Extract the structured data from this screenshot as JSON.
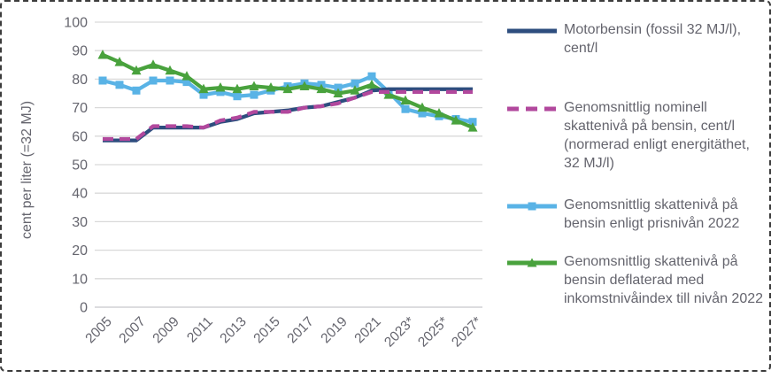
{
  "chart_data": {
    "type": "line",
    "title": "",
    "ylabel": "cent per liter (=32 MJ)",
    "ylim": [
      0,
      100
    ],
    "ytick_step": 10,
    "grid": "horizontal gridlines only",
    "legend_position": "right",
    "x": [
      2005,
      2006,
      2007,
      2008,
      2009,
      2010,
      2011,
      2012,
      2013,
      2014,
      2015,
      2016,
      2017,
      2018,
      2019,
      2020,
      2021,
      2022,
      2023,
      2024,
      2025,
      2026,
      2027
    ],
    "xtick_labels": [
      "2005",
      "2007",
      "2009",
      "2011",
      "2013",
      "2015",
      "2017",
      "2019",
      "2021",
      "2023*",
      "2025*",
      "2027*"
    ],
    "series": [
      {
        "name": "Motorbensin (fossil 32 MJ/l), cent/l",
        "color": "#2d4d7e",
        "line_style": "solid",
        "marker": "none",
        "values": [
          58.5,
          58.5,
          58.5,
          63,
          63,
          63,
          63,
          65,
          66,
          68,
          68.5,
          69,
          70,
          70.5,
          72,
          73.5,
          76,
          76.5,
          76.5,
          76.5,
          76.5,
          76.5,
          76.5
        ]
      },
      {
        "name": "Genomsnittlig nominell skattenivå på bensin, cent/l (normerad enligt energitäthet, 32 MJ/l)",
        "color": "#b2489d",
        "line_style": "dashed",
        "marker": "none",
        "values": [
          59,
          59,
          59,
          63.5,
          63.5,
          63.5,
          63,
          65.5,
          66.5,
          68.5,
          68.5,
          68.5,
          70,
          70.5,
          71.5,
          73.5,
          75.5,
          75.5,
          75.5,
          75.5,
          75.5,
          75.5,
          75.5
        ]
      },
      {
        "name": "Genomsnittlig skattenivå på bensin enligt prisnivån 2022",
        "color": "#59b3e6",
        "line_style": "solid",
        "marker": "square",
        "values": [
          79.5,
          78,
          76,
          79.5,
          79.5,
          79,
          74.5,
          75.5,
          74,
          74.5,
          76,
          77.5,
          78.5,
          78,
          77,
          78.5,
          81,
          75.5,
          69.5,
          68,
          67,
          66,
          65
        ]
      },
      {
        "name": "Genomsnittlig skattenivå på bensin deflaterad med inkomstnivåindex till nivån 2022",
        "color": "#49a23d",
        "line_style": "solid",
        "marker": "triangle",
        "values": [
          88.5,
          86,
          83,
          85,
          83,
          81,
          76.5,
          77,
          76.5,
          77.5,
          77,
          76.5,
          77.5,
          76.5,
          75,
          76,
          78,
          74.5,
          72.5,
          70,
          68,
          65.5,
          63
        ]
      }
    ]
  },
  "colors": {
    "text": "#65656e",
    "gridline": "#d9d9d9",
    "baseline": "#c7c7cc"
  }
}
